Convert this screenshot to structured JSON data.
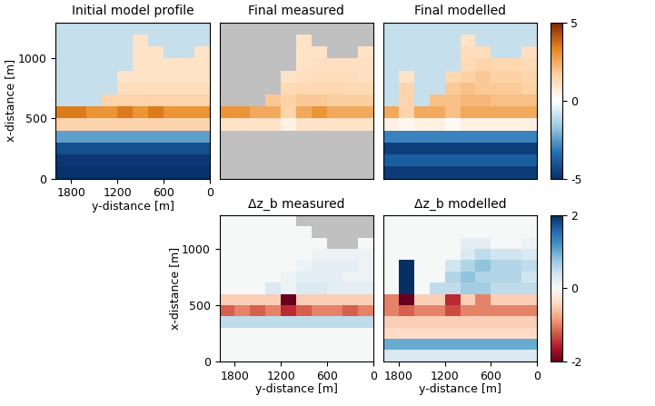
{
  "chart_data": [
    {
      "type": "heatmap",
      "title": "Initial model profile",
      "xlabel": "y-distance [m]",
      "ylabel": "x-distance [m]",
      "x": [
        1900,
        1700,
        1500,
        1300,
        1100,
        900,
        700,
        500,
        300,
        100
      ],
      "y": [
        50,
        150,
        250,
        350,
        450,
        550,
        650,
        750,
        850,
        950,
        1050,
        1150,
        1250
      ],
      "xlim": [
        2000,
        0
      ],
      "ylim": [
        0,
        1300
      ],
      "xticks": [
        1800,
        1200,
        600,
        0
      ],
      "yticks": [
        0,
        500,
        1000
      ],
      "color_range": [
        -5,
        5
      ],
      "cells": [
        [
          -5,
          -5,
          -5,
          -5,
          -5,
          -5,
          -5,
          -5,
          -5,
          -5
        ],
        [
          -4.8,
          -4.8,
          -4.8,
          -4.8,
          -4.8,
          -4.8,
          -4.8,
          -4.8,
          -4.8,
          -4.8
        ],
        [
          -4.2,
          -4.2,
          -4.2,
          -4.2,
          -4.2,
          -4.2,
          -4.2,
          -4.2,
          -4.2,
          -4.2
        ],
        [
          -2.5,
          -2.5,
          -2.5,
          -2.5,
          -2.5,
          -2.5,
          -2.5,
          -2.5,
          -2.5,
          -2.5
        ],
        [
          1.5,
          1.5,
          1.5,
          1.5,
          1.5,
          1.5,
          1.5,
          1.5,
          1.5,
          1.5
        ],
        [
          3.5,
          3.5,
          3,
          3,
          3.5,
          3,
          3.5,
          3,
          3,
          3
        ],
        [
          -1,
          -1,
          -1,
          1.5,
          1.5,
          1.5,
          1.5,
          1.5,
          1.5,
          1.5
        ],
        [
          -1,
          -1,
          -1,
          -1,
          1.2,
          1.2,
          1.2,
          1.2,
          1.2,
          1.2
        ],
        [
          -1,
          -1,
          -1,
          -1,
          1,
          1,
          1,
          1,
          1,
          1
        ],
        [
          -1,
          -1,
          -1,
          -1,
          -1,
          1,
          1,
          1,
          1,
          1
        ],
        [
          -1,
          -1,
          -1,
          -1,
          -1,
          1,
          1,
          -1,
          -1,
          1
        ],
        [
          -1,
          -1,
          -1,
          -1,
          -1,
          1,
          -1,
          -1,
          -1,
          -1
        ],
        [
          -1,
          -1,
          -1,
          -1,
          -1,
          -1,
          -1,
          -1,
          -1,
          -1
        ]
      ]
    },
    {
      "type": "heatmap",
      "title": "Final measured",
      "tick_labels": false,
      "x": [
        1900,
        1700,
        1500,
        1300,
        1100,
        900,
        700,
        500,
        300,
        100
      ],
      "y": [
        50,
        150,
        250,
        350,
        450,
        550,
        650,
        750,
        850,
        950,
        1050,
        1150,
        1250
      ],
      "xlim": [
        2000,
        0
      ],
      "ylim": [
        0,
        1300
      ],
      "color_range": [
        -5,
        5
      ],
      "cells": [
        [
          null,
          null,
          null,
          null,
          null,
          null,
          null,
          null,
          null,
          null
        ],
        [
          null,
          null,
          null,
          null,
          null,
          null,
          null,
          null,
          null,
          null
        ],
        [
          null,
          null,
          null,
          null,
          null,
          null,
          null,
          null,
          null,
          null
        ],
        [
          null,
          null,
          null,
          null,
          null,
          null,
          null,
          null,
          null,
          null
        ],
        [
          1,
          1,
          1,
          1,
          0.5,
          1,
          1,
          1,
          1,
          1
        ],
        [
          3,
          3,
          2.5,
          2.5,
          1.5,
          2.5,
          3,
          2.5,
          2.5,
          2.5
        ],
        [
          null,
          null,
          null,
          1.8,
          1.6,
          1.8,
          1.8,
          1.7,
          1.7,
          1.7
        ],
        [
          null,
          null,
          null,
          null,
          1.3,
          1.4,
          1.4,
          1.4,
          1.3,
          1.3
        ],
        [
          null,
          null,
          null,
          null,
          1,
          1.1,
          1.2,
          1.2,
          1.2,
          1.1
        ],
        [
          null,
          null,
          null,
          null,
          null,
          1,
          1.1,
          1.1,
          1.1,
          1.1
        ],
        [
          null,
          null,
          null,
          null,
          null,
          1,
          1,
          null,
          null,
          1
        ],
        [
          null,
          null,
          null,
          null,
          null,
          1,
          null,
          null,
          null,
          null
        ],
        [
          null,
          null,
          null,
          null,
          null,
          null,
          null,
          null,
          null,
          null
        ]
      ]
    },
    {
      "type": "heatmap",
      "title": "Final modelled",
      "tick_labels": false,
      "x": [
        1900,
        1700,
        1500,
        1300,
        1100,
        900,
        700,
        500,
        300,
        100
      ],
      "y": [
        50,
        150,
        250,
        350,
        450,
        550,
        650,
        750,
        850,
        950,
        1050,
        1150,
        1250
      ],
      "xlim": [
        2000,
        0
      ],
      "ylim": [
        0,
        1300
      ],
      "color_range": [
        -5,
        5
      ],
      "colorbar_ticks": [
        -5,
        0,
        5
      ],
      "cells": [
        [
          -4.7,
          -4.7,
          -4.7,
          -4.7,
          -4.7,
          -4.7,
          -4.7,
          -4.7,
          -4.7,
          -4.7
        ],
        [
          -3.8,
          -3.8,
          -3.8,
          -3.8,
          -3.8,
          -3.8,
          -3.8,
          -3.8,
          -3.8,
          -3.8
        ],
        [
          -4.6,
          -4.6,
          -4.6,
          -4.6,
          -4.6,
          -4.6,
          -4.6,
          -4.6,
          -4.6,
          -4.6
        ],
        [
          -3,
          -3,
          -3,
          -3,
          -3,
          -3,
          -3,
          -3,
          -3,
          -3
        ],
        [
          0.5,
          0.3,
          0.5,
          0.5,
          0.2,
          0.5,
          0.5,
          0.5,
          0.5,
          0.5
        ],
        [
          2.5,
          1.5,
          2.5,
          2.5,
          2,
          2.5,
          2.5,
          2.5,
          2.5,
          2.5
        ],
        [
          -1,
          1.5,
          -1,
          2,
          2,
          2.2,
          2.2,
          2,
          2,
          2
        ],
        [
          -1,
          1.5,
          -1,
          -1,
          1.8,
          2,
          1.8,
          1.8,
          1.8,
          1.6
        ],
        [
          -1,
          1,
          -1,
          -1,
          1.4,
          1.6,
          1.8,
          1.6,
          1.6,
          1.5
        ],
        [
          -1,
          -1,
          -1,
          -1,
          -1,
          1.3,
          1.5,
          1.4,
          1.4,
          1.3
        ],
        [
          -1,
          -1,
          -1,
          -1,
          -1,
          1.2,
          1.2,
          -1,
          -1,
          1.1
        ],
        [
          -1,
          -1,
          -1,
          -1,
          -1,
          1,
          -1,
          -1,
          -1,
          -1
        ],
        [
          -1,
          -1,
          -1,
          -1,
          -1,
          -1,
          -1,
          -1,
          -1,
          -1
        ]
      ]
    },
    {
      "type": "heatmap",
      "title": "Δz_b measured",
      "xlabel": "y-distance [m]",
      "ylabel": "x-distance [m]",
      "x": [
        1900,
        1700,
        1500,
        1300,
        1100,
        900,
        700,
        500,
        300,
        100
      ],
      "y": [
        50,
        150,
        250,
        350,
        450,
        550,
        650,
        750,
        850,
        950,
        1050,
        1150,
        1250
      ],
      "xlim": [
        2000,
        0
      ],
      "ylim": [
        0,
        1300
      ],
      "xticks": [
        1800,
        1200,
        600,
        0
      ],
      "yticks": [
        0,
        500,
        1000
      ],
      "color_range": [
        -2,
        2
      ],
      "cells": [
        [
          0,
          0,
          0,
          0,
          0,
          0,
          0,
          0,
          0,
          0
        ],
        [
          0,
          0,
          0,
          0,
          0,
          0,
          0,
          0,
          0,
          0
        ],
        [
          0,
          0,
          0,
          0,
          0,
          0,
          0,
          0,
          0,
          0
        ],
        [
          0.5,
          0.5,
          0.5,
          0.5,
          0.5,
          0.5,
          0.5,
          0.5,
          0.5,
          0.5
        ],
        [
          -1.2,
          -1,
          -1.2,
          -1,
          -1.5,
          -1.2,
          -1,
          -1,
          -1.2,
          -1
        ],
        [
          -0.5,
          -0.5,
          -0.5,
          -0.5,
          -2,
          -0.5,
          -0.5,
          -0.5,
          -0.5,
          -0.5
        ],
        [
          0,
          0,
          0,
          0.3,
          0.1,
          0.3,
          0.3,
          0.2,
          0.2,
          0.2
        ],
        [
          0,
          0,
          0,
          0,
          0.1,
          0.2,
          0.2,
          0.2,
          0.1,
          0.1
        ],
        [
          0,
          0,
          0,
          0,
          0,
          0.1,
          0.2,
          0.2,
          0.2,
          0.1
        ],
        [
          0,
          0,
          0,
          0,
          0,
          0,
          0.1,
          0.1,
          0.1,
          0.1
        ],
        [
          0,
          0,
          0,
          0,
          0,
          0,
          0,
          null,
          null,
          0
        ],
        [
          0,
          0,
          0,
          0,
          0,
          0,
          null,
          null,
          null,
          null
        ],
        [
          0,
          0,
          0,
          0,
          0,
          null,
          null,
          null,
          null,
          null
        ]
      ]
    },
    {
      "type": "heatmap",
      "title": "Δz_b modelled",
      "xlabel": "y-distance [m]",
      "tick_labels": "x",
      "x": [
        1900,
        1700,
        1500,
        1300,
        1100,
        900,
        700,
        500,
        300,
        100
      ],
      "y": [
        50,
        150,
        250,
        350,
        450,
        550,
        650,
        750,
        850,
        950,
        1050,
        1150,
        1250
      ],
      "xlim": [
        2000,
        0
      ],
      "ylim": [
        0,
        1300
      ],
      "xticks": [
        1800,
        1200,
        600,
        0
      ],
      "color_range": [
        -2,
        2
      ],
      "colorbar_ticks": [
        -2,
        0,
        2
      ],
      "cells": [
        [
          0.3,
          0.3,
          0.3,
          0.3,
          0.3,
          0.3,
          0.3,
          0.3,
          0.3,
          0.3
        ],
        [
          1,
          1,
          1,
          1,
          1,
          1,
          1,
          1,
          1,
          1
        ],
        [
          -0.4,
          -0.4,
          -0.4,
          -0.4,
          -0.4,
          -0.4,
          -0.4,
          -0.4,
          -0.4,
          -0.4
        ],
        [
          -0.5,
          -0.5,
          -0.5,
          -0.5,
          -0.5,
          -0.5,
          -0.5,
          -0.5,
          -0.5,
          -0.5
        ],
        [
          -1,
          -1.2,
          -1,
          -1,
          -1.3,
          -1,
          -1,
          -1,
          -1,
          -1
        ],
        [
          -1,
          -2,
          -0.5,
          -0.5,
          -1.5,
          -0.5,
          -1,
          -0.5,
          -0.5,
          -0.5
        ],
        [
          0,
          2,
          0,
          0.5,
          0.5,
          0.7,
          0.7,
          0.5,
          0.5,
          0.5
        ],
        [
          0,
          2,
          0,
          0,
          0.6,
          0.8,
          0.6,
          0.6,
          0.6,
          0.4
        ],
        [
          0,
          2,
          0,
          0,
          0.4,
          0.6,
          0.8,
          0.6,
          0.6,
          0.5
        ],
        [
          0,
          0,
          0,
          0,
          0,
          0.3,
          0.5,
          0.4,
          0.4,
          0.3
        ],
        [
          0,
          0,
          0,
          0,
          0,
          0.2,
          0.2,
          0,
          0,
          0.1
        ],
        [
          0,
          0,
          0,
          0,
          0,
          0,
          0,
          0,
          0,
          0
        ],
        [
          0,
          0,
          0,
          0,
          0,
          0,
          0,
          0,
          0,
          0
        ]
      ]
    }
  ]
}
